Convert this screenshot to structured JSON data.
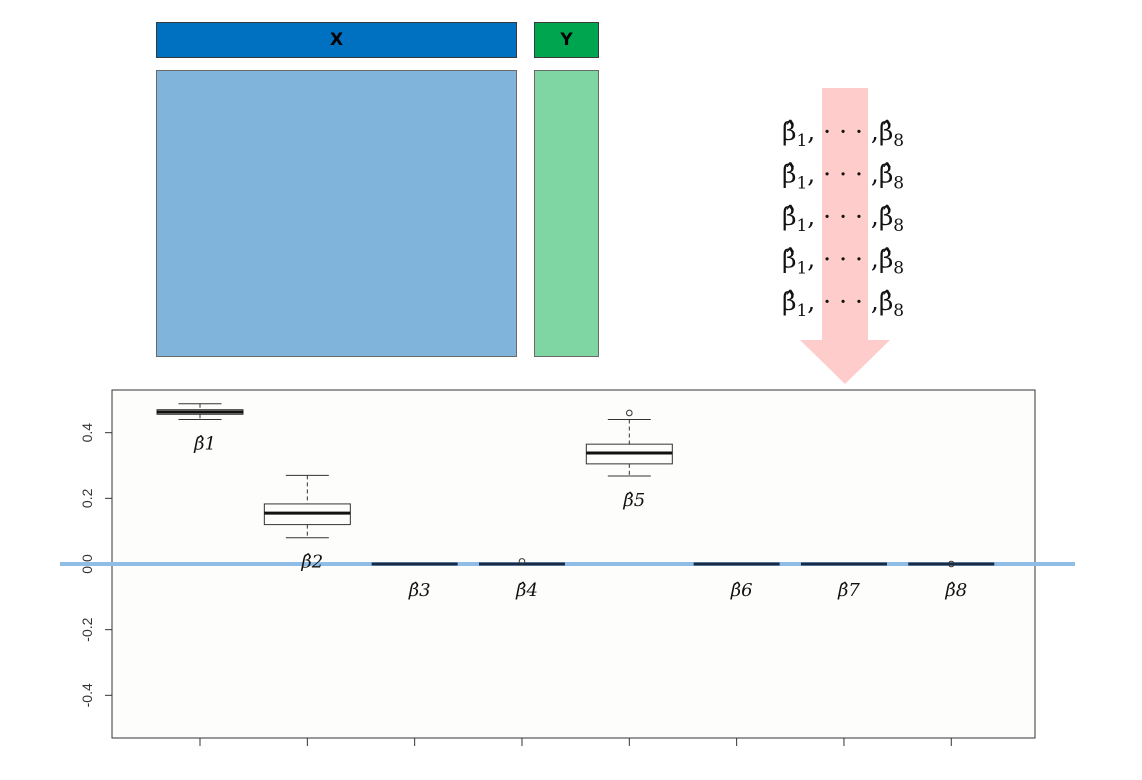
{
  "matrix": {
    "x_label": "X",
    "y_label": "Y",
    "colors": {
      "x_header": "#0070c0",
      "x_block": "#80b4da",
      "y_header": "#00a550",
      "y_block": "#7fd6a3"
    }
  },
  "estimates": {
    "row_count": 5,
    "first": "β̂",
    "first_sub": "1",
    "ellipsis": ", · · · ,",
    "last": "β̂",
    "last_sub": "8",
    "arrow_color": "#ffcccc"
  },
  "chart_data": {
    "type": "box",
    "ylim": [
      -0.53,
      0.53
    ],
    "yticks": [
      "-0.4",
      "-0.2",
      "0.0",
      "0.2",
      "0.4"
    ],
    "ytick_values": [
      -0.4,
      -0.2,
      0.0,
      0.2,
      0.4
    ],
    "reference_line": 0.0,
    "reference_line_color": "#8fbde6",
    "boxes": [
      {
        "label": "β̂1",
        "whisker_low": 0.44,
        "q1": 0.456,
        "median": 0.463,
        "q3": 0.47,
        "whisker_high": 0.488,
        "outliers": []
      },
      {
        "label": "β̂2",
        "whisker_low": 0.08,
        "q1": 0.12,
        "median": 0.155,
        "q3": 0.183,
        "whisker_high": 0.27,
        "outliers": []
      },
      {
        "label": "β̂3",
        "whisker_low": 0.0,
        "q1": 0.0,
        "median": 0.0,
        "q3": 0.0,
        "whisker_high": 0.0,
        "outliers": []
      },
      {
        "label": "β̂4",
        "whisker_low": 0.0,
        "q1": 0.0,
        "median": 0.0,
        "q3": 0.0,
        "whisker_high": 0.0,
        "outliers": [
          0.008
        ]
      },
      {
        "label": "β̂5",
        "whisker_low": 0.268,
        "q1": 0.305,
        "median": 0.338,
        "q3": 0.365,
        "whisker_high": 0.44,
        "outliers": [
          0.46
        ]
      },
      {
        "label": "β̂6",
        "whisker_low": 0.0,
        "q1": 0.0,
        "median": 0.0,
        "q3": 0.0,
        "whisker_high": 0.0,
        "outliers": []
      },
      {
        "label": "β̂7",
        "whisker_low": 0.0,
        "q1": 0.0,
        "median": 0.0,
        "q3": 0.0,
        "whisker_high": 0.0,
        "outliers": []
      },
      {
        "label": "β̂8",
        "whisker_low": 0.0,
        "q1": 0.0,
        "median": 0.0,
        "q3": 0.0,
        "whisker_high": 0.0,
        "outliers": [
          0.0
        ]
      }
    ]
  }
}
